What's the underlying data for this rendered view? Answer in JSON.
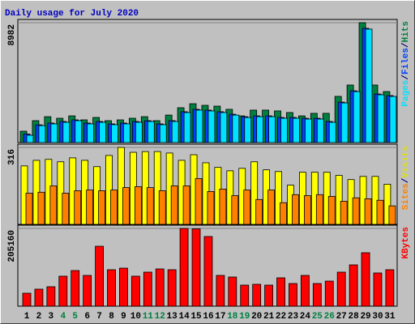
{
  "chart_data": [
    {
      "type": "bar",
      "title": "Daily usage for July 2020",
      "ylim": [
        0,
        8982
      ],
      "yticks": [
        8982
      ],
      "legend_separator": "/",
      "series": [
        {
          "name": "Hits",
          "color": "#008040",
          "values": [
            850,
            1640,
            1940,
            1820,
            2000,
            1700,
            1880,
            1640,
            1700,
            1820,
            1940,
            1640,
            2060,
            2610,
            2910,
            2790,
            2730,
            2490,
            2000,
            2430,
            2430,
            2370,
            2250,
            2000,
            2190,
            2190,
            3460,
            4310,
            8982,
            4310,
            3820
          ]
        },
        {
          "name": "Files",
          "color": "#0040ff",
          "values": [
            640,
            1330,
            1460,
            1580,
            1700,
            1460,
            1580,
            1400,
            1460,
            1580,
            1640,
            1400,
            1640,
            2310,
            2490,
            2430,
            2310,
            2120,
            1940,
            2000,
            2000,
            1880,
            1880,
            1820,
            1820,
            1580,
            3030,
            3880,
            8560,
            3640,
            3520
          ]
        },
        {
          "name": "Pages",
          "color": "#00e0ff",
          "values": [
            550,
            1270,
            1400,
            1520,
            1640,
            1400,
            1520,
            1340,
            1400,
            1520,
            1580,
            1340,
            1580,
            2250,
            2430,
            2370,
            2250,
            2060,
            1880,
            1940,
            1940,
            1820,
            1820,
            1760,
            1760,
            1520,
            2970,
            3820,
            8500,
            3580,
            3460
          ]
        }
      ]
    },
    {
      "type": "bar",
      "ylim": [
        0,
        316
      ],
      "yticks": [
        316
      ],
      "legend_separator": "/",
      "series": [
        {
          "name": "Visits",
          "color": "#ffff00",
          "values": [
            240,
            263,
            267,
            257,
            273,
            263,
            237,
            283,
            316,
            296,
            299,
            299,
            293,
            263,
            286,
            253,
            234,
            220,
            230,
            257,
            224,
            217,
            161,
            214,
            214,
            214,
            201,
            184,
            197,
            197,
            165
          ]
        },
        {
          "name": "Sites",
          "color": "#ff8000",
          "values": [
            128,
            132,
            158,
            128,
            138,
            141,
            138,
            141,
            151,
            155,
            151,
            138,
            158,
            158,
            188,
            135,
            145,
            118,
            141,
            102,
            141,
            89,
            122,
            118,
            122,
            115,
            95,
            109,
            105,
            99,
            76
          ]
        }
      ]
    },
    {
      "type": "bar",
      "ylim": [
        0,
        205160
      ],
      "yticks": [
        205160
      ],
      "categories": [
        "1",
        "2",
        "3",
        "4",
        "5",
        "6",
        "7",
        "8",
        "9",
        "10",
        "11",
        "12",
        "13",
        "14",
        "15",
        "16",
        "17",
        "18",
        "19",
        "20",
        "21",
        "22",
        "23",
        "24",
        "25",
        "26",
        "27",
        "28",
        "29",
        "30",
        "31"
      ],
      "category_colors": [
        "#000000",
        "#000000",
        "#000000",
        "#008040",
        "#008040",
        "#000000",
        "#000000",
        "#000000",
        "#000000",
        "#000000",
        "#008040",
        "#008040",
        "#000000",
        "#000000",
        "#000000",
        "#000000",
        "#000000",
        "#008040",
        "#008040",
        "#000000",
        "#000000",
        "#000000",
        "#000000",
        "#000000",
        "#008040",
        "#008040",
        "#000000",
        "#000000",
        "#000000",
        "#000000",
        "#000000"
      ],
      "series": [
        {
          "name": "KBytes",
          "color": "#ff0000",
          "values": [
            34200,
            44900,
            51300,
            79100,
            94000,
            81200,
            158100,
            96200,
            100400,
            79100,
            89800,
            98300,
            96200,
            205160,
            204000,
            183800,
            81200,
            76900,
            55600,
            57700,
            55600,
            74800,
            59800,
            81200,
            59800,
            66200,
            89800,
            109000,
            141000,
            87600,
            96200
          ]
        }
      ]
    }
  ]
}
